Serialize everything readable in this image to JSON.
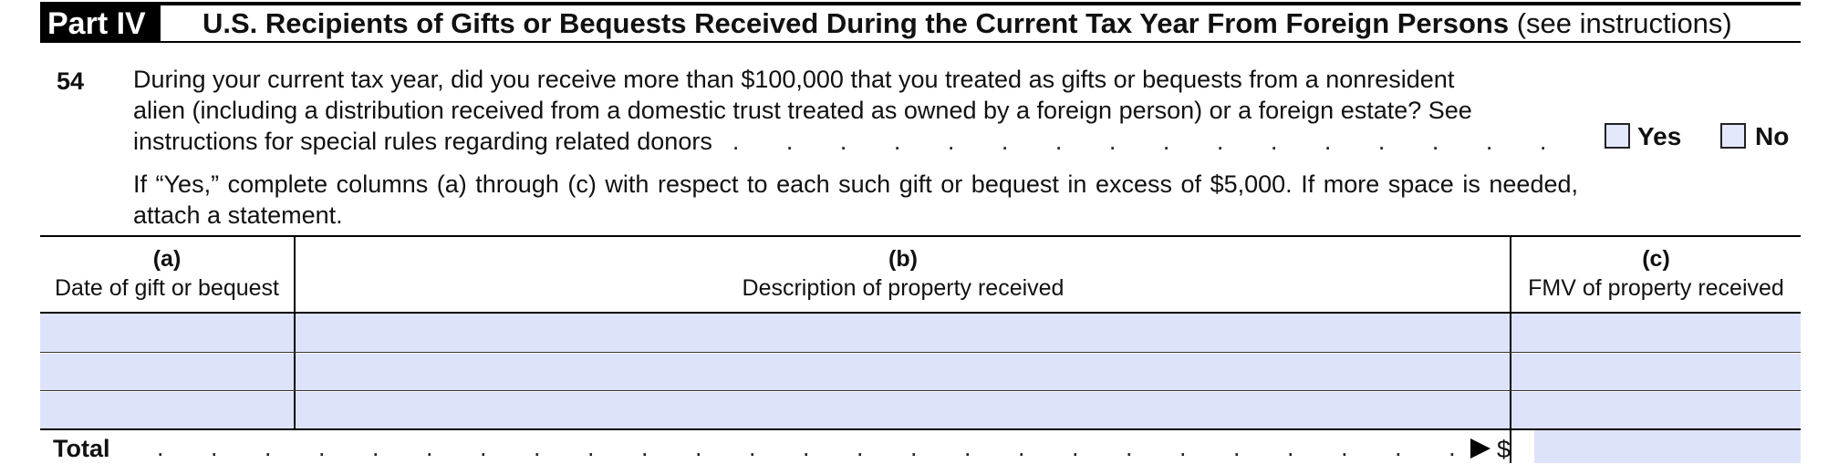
{
  "header": {
    "part_label": "Part IV",
    "title": "U.S. Recipients of Gifts or Bequests Received During the Current Tax Year From Foreign Persons",
    "note": "(see instructions)"
  },
  "question": {
    "number": "54",
    "line1": "During your current tax year, did you receive more than $100,000 that you treated as gifts or bequests from a nonresident",
    "line2": "alien (including a distribution received from a domestic trust treated as owned by a foreign person) or a foreign estate? See",
    "line3": "instructions for special rules regarding related donors",
    "leader_dots": ". . . . . . . . . . . . . . . . . . . . . . . . . . . . . . . . . . .",
    "yes_label": "Yes",
    "no_label": "No",
    "instruction": "If “Yes,” complete columns (a) through (c) with respect to each such gift or bequest in excess of $5,000. If more space is needed, attach a statement."
  },
  "table": {
    "columns": [
      {
        "letter": "(a)",
        "label": "Date of gift or bequest"
      },
      {
        "letter": "(b)",
        "label": "Description of property received"
      },
      {
        "letter": "(c)",
        "label": "FMV of property received"
      }
    ],
    "rows": [
      {
        "date": "",
        "description": "",
        "fmv": ""
      },
      {
        "date": "",
        "description": "",
        "fmv": ""
      },
      {
        "date": "",
        "description": "",
        "fmv": ""
      }
    ],
    "total_label": "Total",
    "total_dots": ". . . . . . . . . . . . . . . . . . . . . . . . . . . . . . . . . . . . . . . . . . . . . . . .",
    "total_currency": "$",
    "total_value": ""
  },
  "colors": {
    "field_fill": "#dde3fb",
    "rule": "#000000"
  }
}
